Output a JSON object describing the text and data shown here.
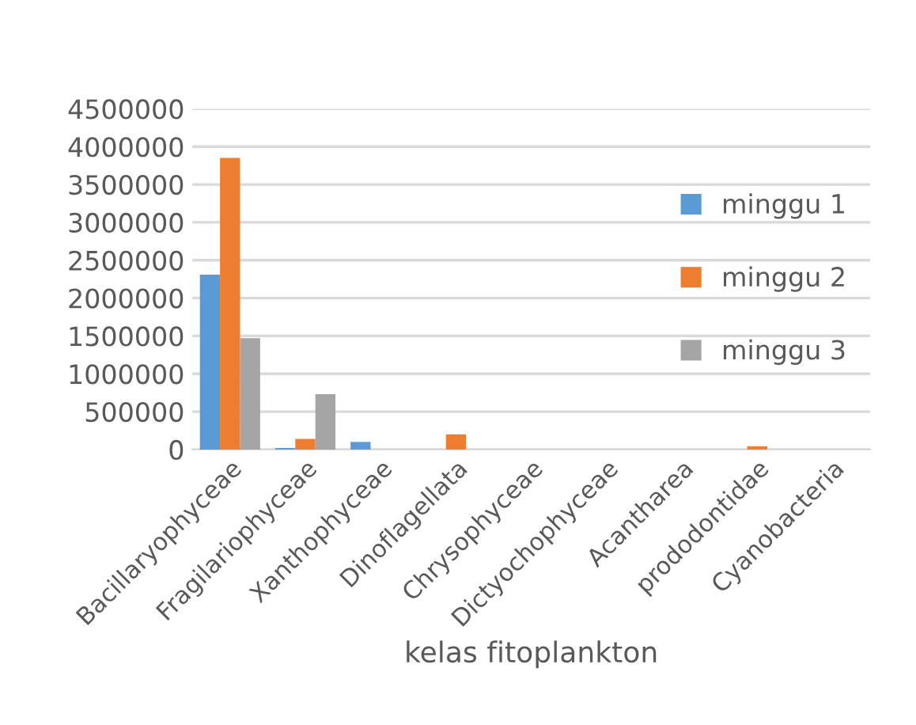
{
  "chart_data": {
    "type": "bar",
    "xlabel": "kelas fitoplankton",
    "categories": [
      "Bacillaryophyceae",
      "Fragilariophyceae",
      "Xanthophyceae",
      "Dinoflagellata",
      "Chrysophyceae",
      "Dictyochophyceae",
      "Acantharea",
      "prododontidae",
      "Cyanobacteria"
    ],
    "series": [
      {
        "name": "minggu 1",
        "color": "#5b9bd5",
        "values": [
          2310000,
          20000,
          100000,
          0,
          0,
          0,
          0,
          0,
          0
        ]
      },
      {
        "name": "minggu 2",
        "color": "#ed7d31",
        "values": [
          3850000,
          140000,
          0,
          200000,
          0,
          0,
          0,
          43000,
          0
        ]
      },
      {
        "name": "minggu 3",
        "color": "#a5a5a5",
        "values": [
          1470000,
          730000,
          0,
          0,
          0,
          0,
          0,
          0,
          0
        ]
      }
    ],
    "ylim": [
      0,
      4500000
    ],
    "yticks": [
      0,
      500000,
      1000000,
      1500000,
      2000000,
      2500000,
      3000000,
      3500000,
      4000000,
      4500000
    ],
    "grid": "y",
    "legend": "right"
  }
}
